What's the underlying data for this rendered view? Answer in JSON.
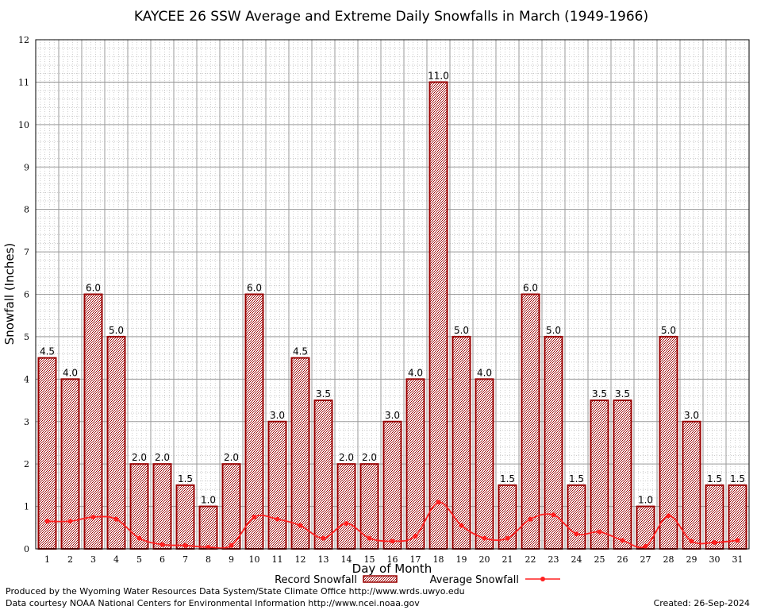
{
  "chart_data": {
    "type": "bar",
    "title": "KAYCEE 26 SSW Average and Extreme Daily Snowfalls in March (1949-1966)",
    "xlabel": "Day of Month",
    "ylabel": "Snowfall (Inches)",
    "ylim": [
      0,
      12
    ],
    "yticks": [
      0,
      1,
      2,
      3,
      4,
      5,
      6,
      7,
      8,
      9,
      10,
      11,
      12
    ],
    "grid": true,
    "categories": [
      "1",
      "2",
      "3",
      "4",
      "5",
      "6",
      "7",
      "8",
      "9",
      "10",
      "11",
      "12",
      "13",
      "14",
      "15",
      "16",
      "17",
      "18",
      "19",
      "20",
      "21",
      "22",
      "23",
      "24",
      "25",
      "26",
      "27",
      "28",
      "29",
      "30",
      "31"
    ],
    "series": [
      {
        "name": "Record Snowfall",
        "kind": "bar",
        "color": "#990000",
        "values": [
          4.5,
          4.0,
          6.0,
          5.0,
          2.0,
          2.0,
          1.5,
          1.0,
          2.0,
          6.0,
          3.0,
          4.5,
          3.5,
          2.0,
          2.0,
          3.0,
          4.0,
          11.0,
          5.0,
          4.0,
          1.5,
          6.0,
          5.0,
          1.5,
          3.5,
          3.5,
          1.0,
          5.0,
          3.0,
          1.5,
          1.5
        ],
        "labels": [
          "4.5",
          "4.0",
          "6.0",
          "5.0",
          "2.0",
          "2.0",
          "1.5",
          "1.0",
          "2.0",
          "6.0",
          "3.0",
          "4.5",
          "3.5",
          "2.0",
          "2.0",
          "3.0",
          "4.0",
          "11.0",
          "5.0",
          "4.0",
          "1.5",
          "6.0",
          "5.0",
          "1.5",
          "3.5",
          "3.5",
          "1.0",
          "5.0",
          "3.0",
          "1.5",
          "1.5"
        ]
      },
      {
        "name": "Average Snowfall",
        "kind": "line",
        "color": "#ff2020",
        "values": [
          0.65,
          0.65,
          0.75,
          0.7,
          0.25,
          0.1,
          0.08,
          0.04,
          0.08,
          0.75,
          0.7,
          0.55,
          0.25,
          0.6,
          0.25,
          0.18,
          0.3,
          1.1,
          0.55,
          0.25,
          0.25,
          0.7,
          0.8,
          0.35,
          0.4,
          0.2,
          0.06,
          0.78,
          0.18,
          0.15,
          0.2
        ]
      }
    ],
    "legend_position": "bottom-center"
  },
  "footer": {
    "left_line1": "Produced by the Wyoming Water Resources Data System/State Climate Office http://www.wrds.uwyo.edu",
    "left_line2": "Data courtesy NOAA National Centers for Environmental Information http://www.ncei.noaa.gov",
    "right": "Created:  26-Sep-2024"
  }
}
